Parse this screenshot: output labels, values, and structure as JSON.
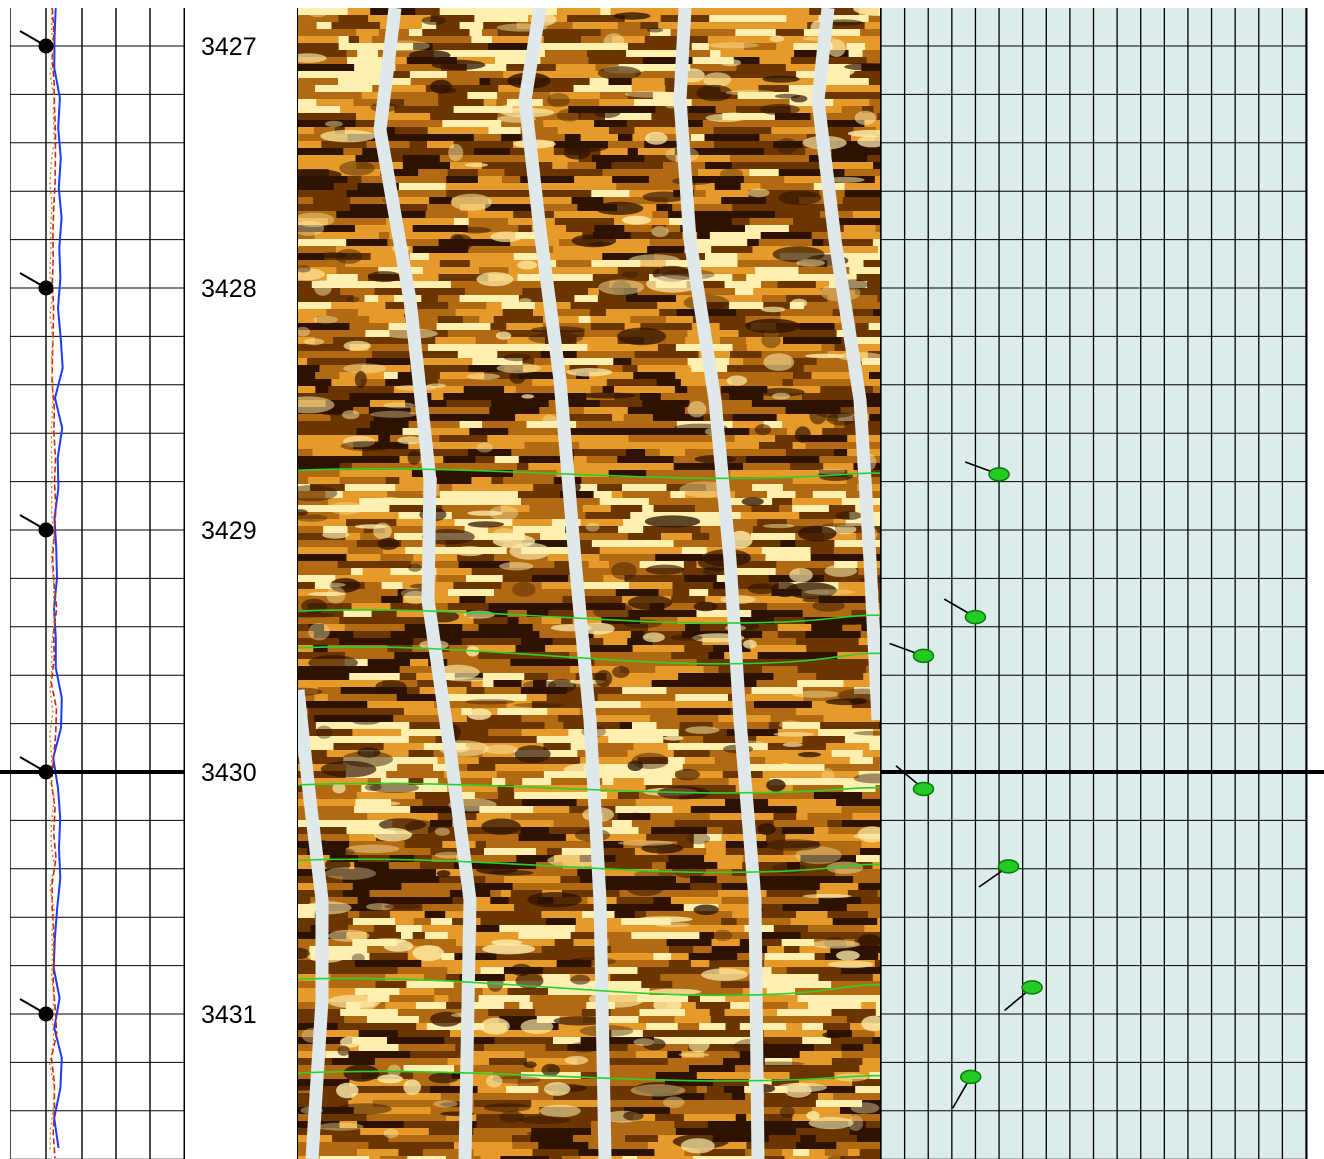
{
  "chart_data": {
    "type": "line",
    "title": "",
    "depth_axis": {
      "range": [
        3426.85,
        3431.6
      ],
      "tick_labels": [
        "3427",
        "3428",
        "3429",
        "3430",
        "3431"
      ],
      "major_ticks": [
        3427,
        3428,
        3429,
        3430,
        3431
      ],
      "minor_step": 0.2,
      "emphasized_depth": 3430
    },
    "tracks": [
      {
        "name": "left-track",
        "curves": [
          {
            "style": "solid",
            "color": "#1a3cff"
          },
          {
            "style": "dashed",
            "color": "#cc2222"
          },
          {
            "style": "dotted",
            "color": "#cc8800"
          }
        ],
        "tadpoles": [
          {
            "depth": 3427.0,
            "azimuth_deg": 300,
            "color": "#000000"
          },
          {
            "depth": 3428.0,
            "azimuth_deg": 300,
            "color": "#000000"
          },
          {
            "depth": 3429.0,
            "azimuth_deg": 300,
            "color": "#000000"
          },
          {
            "depth": 3430.0,
            "azimuth_deg": 300,
            "color": "#000000"
          },
          {
            "depth": 3431.0,
            "azimuth_deg": 300,
            "color": "#000000"
          }
        ]
      },
      {
        "name": "depth-track",
        "labels": [
          "3427",
          "3428",
          "3429",
          "3430",
          "3431"
        ]
      },
      {
        "name": "borehole-image",
        "palette": [
          "#2e1200",
          "#6b3500",
          "#b26a12",
          "#e59a2a",
          "#fff0b0"
        ],
        "pad_gap_color": "#dfe8ea",
        "picked_beds_depth": [
          3428.77,
          3429.36,
          3429.52,
          3430.07,
          3430.39,
          3430.89,
          3431.26
        ]
      },
      {
        "name": "dip-track",
        "x_axis": {
          "range": [
            0,
            90
          ],
          "gridlines": 18
        },
        "background": "#dcebeb",
        "tadpoles": [
          {
            "depth": 3428.77,
            "dip": 25,
            "azimuth_deg": 290,
            "color": "#22cc22"
          },
          {
            "depth": 3429.36,
            "dip": 20,
            "azimuth_deg": 300,
            "color": "#22cc22"
          },
          {
            "depth": 3429.52,
            "dip": 9,
            "azimuth_deg": 290,
            "color": "#22cc22"
          },
          {
            "depth": 3430.07,
            "dip": 9,
            "azimuth_deg": 310,
            "color": "#22cc22"
          },
          {
            "depth": 3430.39,
            "dip": 27,
            "azimuth_deg": 235,
            "color": "#22cc22"
          },
          {
            "depth": 3430.89,
            "dip": 32,
            "azimuth_deg": 230,
            "color": "#22cc22"
          },
          {
            "depth": 3431.26,
            "dip": 19,
            "azimuth_deg": 210,
            "color": "#22cc22"
          }
        ]
      }
    ],
    "grid": true,
    "legend": ""
  }
}
